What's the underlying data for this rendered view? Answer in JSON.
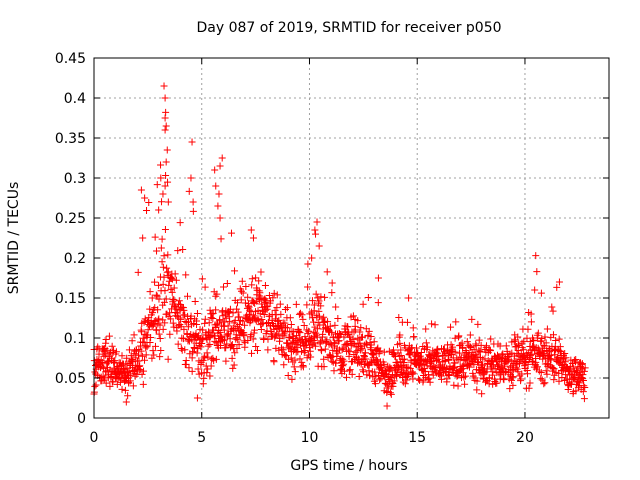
{
  "chart_data": {
    "type": "scatter",
    "title": "Day 087 of 2019, SRMTID for receiver p050",
    "xlabel": "GPS time / hours",
    "ylabel": "SRMTID / TECUs",
    "xlim": [
      0,
      23.9
    ],
    "ylim": [
      0,
      0.45
    ],
    "x_ticks": [
      0,
      5,
      10,
      15,
      20
    ],
    "x_tick_labels": [
      "0",
      "5",
      "10",
      "15",
      "20"
    ],
    "y_ticks": [
      0,
      0.05,
      0.1,
      0.15,
      0.2,
      0.25,
      0.3,
      0.35,
      0.4,
      0.45
    ],
    "y_tick_labels": [
      "0",
      "0.05",
      "0.1",
      "0.15",
      "0.2",
      "0.25",
      "0.3",
      "0.35",
      "0.4",
      "0.45"
    ],
    "grid": true,
    "marker": "+",
    "series": [
      {
        "name": "SRMTID",
        "color": "#ff0000",
        "envelope": [
          {
            "x": 0.0,
            "center": 0.065,
            "spread": 0.04,
            "max": 0.11
          },
          {
            "x": 0.5,
            "center": 0.075,
            "spread": 0.035,
            "max": 0.11
          },
          {
            "x": 1.0,
            "center": 0.06,
            "spread": 0.03,
            "max": 0.1
          },
          {
            "x": 1.5,
            "center": 0.055,
            "spread": 0.03,
            "max": 0.09
          },
          {
            "x": 2.0,
            "center": 0.075,
            "spread": 0.05,
            "max": 0.2
          },
          {
            "x": 2.5,
            "center": 0.1,
            "spread": 0.06,
            "max": 0.29
          },
          {
            "x": 3.0,
            "center": 0.13,
            "spread": 0.07,
            "max": 0.3
          },
          {
            "x": 3.3,
            "center": 0.17,
            "spread": 0.09,
            "max": 0.415
          },
          {
            "x": 3.7,
            "center": 0.13,
            "spread": 0.07,
            "max": 0.28
          },
          {
            "x": 4.2,
            "center": 0.11,
            "spread": 0.06,
            "max": 0.25
          },
          {
            "x": 4.6,
            "center": 0.1,
            "spread": 0.06,
            "max": 0.34
          },
          {
            "x": 5.0,
            "center": 0.085,
            "spread": 0.05,
            "max": 0.18
          },
          {
            "x": 5.5,
            "center": 0.11,
            "spread": 0.06,
            "max": 0.2
          },
          {
            "x": 6.0,
            "center": 0.12,
            "spread": 0.07,
            "max": 0.325
          },
          {
            "x": 6.5,
            "center": 0.11,
            "spread": 0.06,
            "max": 0.21
          },
          {
            "x": 7.0,
            "center": 0.12,
            "spread": 0.06,
            "max": 0.23
          },
          {
            "x": 7.5,
            "center": 0.13,
            "spread": 0.06,
            "max": 0.22
          },
          {
            "x": 8.0,
            "center": 0.12,
            "spread": 0.05,
            "max": 0.2
          },
          {
            "x": 8.5,
            "center": 0.11,
            "spread": 0.05,
            "max": 0.18
          },
          {
            "x": 9.0,
            "center": 0.09,
            "spread": 0.05,
            "max": 0.17
          },
          {
            "x": 9.5,
            "center": 0.09,
            "spread": 0.05,
            "max": 0.16
          },
          {
            "x": 10.0,
            "center": 0.1,
            "spread": 0.05,
            "max": 0.2
          },
          {
            "x": 10.3,
            "center": 0.12,
            "spread": 0.06,
            "max": 0.245
          },
          {
            "x": 11.0,
            "center": 0.095,
            "spread": 0.05,
            "max": 0.17
          },
          {
            "x": 12.0,
            "center": 0.085,
            "spread": 0.045,
            "max": 0.15
          },
          {
            "x": 13.0,
            "center": 0.075,
            "spread": 0.045,
            "max": 0.175
          },
          {
            "x": 13.5,
            "center": 0.05,
            "spread": 0.035,
            "max": 0.12
          },
          {
            "x": 14.5,
            "center": 0.07,
            "spread": 0.04,
            "max": 0.15
          },
          {
            "x": 15.5,
            "center": 0.065,
            "spread": 0.04,
            "max": 0.12
          },
          {
            "x": 16.5,
            "center": 0.07,
            "spread": 0.035,
            "max": 0.12
          },
          {
            "x": 17.5,
            "center": 0.07,
            "spread": 0.04,
            "max": 0.13
          },
          {
            "x": 18.5,
            "center": 0.065,
            "spread": 0.035,
            "max": 0.11
          },
          {
            "x": 19.5,
            "center": 0.065,
            "spread": 0.035,
            "max": 0.11
          },
          {
            "x": 20.0,
            "center": 0.075,
            "spread": 0.04,
            "max": 0.13
          },
          {
            "x": 20.5,
            "center": 0.08,
            "spread": 0.045,
            "max": 0.2
          },
          {
            "x": 21.0,
            "center": 0.075,
            "spread": 0.04,
            "max": 0.13
          },
          {
            "x": 21.5,
            "center": 0.075,
            "spread": 0.04,
            "max": 0.17
          },
          {
            "x": 22.0,
            "center": 0.055,
            "spread": 0.03,
            "max": 0.1
          },
          {
            "x": 22.8,
            "center": 0.055,
            "spread": 0.03,
            "max": 0.09
          }
        ],
        "highlights": [
          {
            "x": 3.25,
            "y": 0.415
          },
          {
            "x": 3.3,
            "y": 0.4
          },
          {
            "x": 3.3,
            "y": 0.375
          },
          {
            "x": 3.35,
            "y": 0.365
          },
          {
            "x": 3.3,
            "y": 0.36
          },
          {
            "x": 3.4,
            "y": 0.335
          },
          {
            "x": 3.35,
            "y": 0.32
          },
          {
            "x": 3.1,
            "y": 0.3
          },
          {
            "x": 3.3,
            "y": 0.29
          },
          {
            "x": 3.2,
            "y": 0.28
          },
          {
            "x": 3.45,
            "y": 0.27
          },
          {
            "x": 3.0,
            "y": 0.26
          },
          {
            "x": 4.55,
            "y": 0.345
          },
          {
            "x": 4.5,
            "y": 0.3
          },
          {
            "x": 4.6,
            "y": 0.27
          },
          {
            "x": 5.95,
            "y": 0.325
          },
          {
            "x": 5.85,
            "y": 0.315
          },
          {
            "x": 5.6,
            "y": 0.31
          },
          {
            "x": 5.65,
            "y": 0.29
          },
          {
            "x": 5.8,
            "y": 0.28
          },
          {
            "x": 5.75,
            "y": 0.265
          },
          {
            "x": 5.85,
            "y": 0.25
          },
          {
            "x": 2.2,
            "y": 0.285
          },
          {
            "x": 2.35,
            "y": 0.275
          },
          {
            "x": 10.35,
            "y": 0.245
          },
          {
            "x": 10.25,
            "y": 0.235
          },
          {
            "x": 10.45,
            "y": 0.215
          },
          {
            "x": 10.1,
            "y": 0.2
          },
          {
            "x": 7.3,
            "y": 0.235
          },
          {
            "x": 7.4,
            "y": 0.225
          },
          {
            "x": 13.2,
            "y": 0.175
          },
          {
            "x": 14.6,
            "y": 0.15
          },
          {
            "x": 20.5,
            "y": 0.203
          },
          {
            "x": 20.55,
            "y": 0.183
          },
          {
            "x": 20.45,
            "y": 0.16
          },
          {
            "x": 21.6,
            "y": 0.17
          },
          {
            "x": 4.8,
            "y": 0.025
          },
          {
            "x": 13.6,
            "y": 0.015
          },
          {
            "x": 1.5,
            "y": 0.02
          },
          {
            "x": 0.0,
            "y": 0.03
          },
          {
            "x": 0.5,
            "y": 0.05
          }
        ]
      }
    ]
  }
}
